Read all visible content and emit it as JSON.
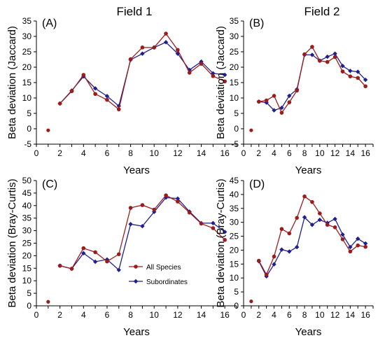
{
  "colors": {
    "all_species": "#9b1c1c",
    "subordinates": "#1f1f8f",
    "axis": "#000000"
  },
  "column_titles": [
    "Field 1",
    "Field 2"
  ],
  "x_axis_title": "Years",
  "legend": {
    "all_species": "All Species",
    "subordinates": "Subordinates"
  },
  "chart_data": [
    {
      "type": "line",
      "panel": "(A)",
      "field": "Field 1",
      "ylabel": "Beta deviation (Jaccard)",
      "xlim": [
        0,
        17
      ],
      "ylim": [
        -5,
        35
      ],
      "xticks": [
        0,
        2,
        4,
        6,
        8,
        10,
        12,
        14,
        16
      ],
      "yticks": [
        -5,
        0,
        5,
        10,
        15,
        20,
        25,
        30,
        35
      ],
      "year1": {
        "x": 1,
        "y": -0.5
      },
      "series": [
        {
          "name": "All Species",
          "x": [
            2,
            3,
            4,
            5,
            6,
            7,
            8,
            9,
            10,
            11,
            12,
            13,
            14,
            15,
            16
          ],
          "y": [
            8.2,
            12.2,
            17.5,
            11.3,
            9.4,
            6.3,
            22.6,
            26.4,
            26.4,
            30.9,
            25.6,
            18.2,
            21.1,
            17.1,
            15.4
          ]
        },
        {
          "name": "Subordinates",
          "x": [
            2,
            3,
            4,
            5,
            6,
            7,
            8,
            9,
            10,
            11,
            12,
            13,
            14,
            15,
            16
          ],
          "y": [
            8.2,
            12.4,
            17.0,
            13.1,
            10.6,
            7.4,
            22.4,
            24.4,
            26.4,
            28.1,
            24.4,
            19.1,
            21.8,
            18.0,
            17.5
          ]
        }
      ]
    },
    {
      "type": "line",
      "panel": "(B)",
      "field": "Field 2",
      "ylabel": "Beta deviation (Jaccard)",
      "xlim": [
        0,
        17
      ],
      "ylim": [
        -5,
        35
      ],
      "xticks": [
        0,
        2,
        4,
        6,
        8,
        10,
        12,
        14,
        16
      ],
      "yticks": [
        -5,
        0,
        5,
        10,
        15,
        20,
        25,
        30,
        35
      ],
      "year1": {
        "x": 1,
        "y": -0.5
      },
      "series": [
        {
          "name": "All Species",
          "x": [
            2,
            3,
            4,
            5,
            6,
            7,
            8,
            9,
            10,
            11,
            12,
            13,
            14,
            15,
            16
          ],
          "y": [
            8.8,
            9.2,
            10.7,
            5.2,
            8.6,
            12.4,
            24.2,
            26.6,
            22.1,
            21.7,
            23.3,
            18.6,
            17.0,
            16.5,
            13.8
          ]
        },
        {
          "name": "Subordinates",
          "x": [
            2,
            3,
            4,
            5,
            6,
            7,
            8,
            9,
            10,
            11,
            12,
            13,
            14,
            15,
            16
          ],
          "y": [
            8.8,
            8.5,
            6.0,
            6.8,
            10.7,
            12.8,
            24.0,
            24.0,
            22.1,
            23.4,
            24.4,
            20.4,
            18.8,
            18.5,
            15.9
          ]
        }
      ]
    },
    {
      "type": "line",
      "panel": "(C)",
      "field": "Field 1",
      "ylabel": "Beta deviation (Bray-Curtis)",
      "xlim": [
        0,
        17
      ],
      "ylim": [
        0,
        50
      ],
      "xticks": [
        0,
        2,
        4,
        6,
        8,
        10,
        12,
        14,
        16
      ],
      "yticks": [
        0,
        5,
        10,
        15,
        20,
        25,
        30,
        35,
        40,
        45,
        50
      ],
      "year1": {
        "x": 1,
        "y": 1.6
      },
      "series": [
        {
          "name": "All Species",
          "x": [
            2,
            3,
            4,
            5,
            6,
            7,
            8,
            9,
            10,
            11,
            12,
            13,
            14,
            15,
            16
          ],
          "y": [
            16.0,
            14.8,
            23.0,
            21.4,
            17.7,
            20.6,
            39.1,
            40.2,
            38.4,
            44.1,
            41.6,
            37.2,
            32.8,
            31.0,
            26.3
          ]
        },
        {
          "name": "Subordinates",
          "x": [
            2,
            3,
            4,
            5,
            6,
            7,
            8,
            9,
            10,
            11,
            12,
            13,
            14,
            15,
            16
          ],
          "y": [
            16.0,
            14.8,
            21.0,
            17.6,
            18.5,
            14.3,
            32.6,
            31.8,
            37.5,
            43.2,
            42.8,
            37.6,
            33.0,
            33.0,
            29.5
          ]
        }
      ]
    },
    {
      "type": "line",
      "panel": "(D)",
      "field": "Field 2",
      "ylabel": "Beta deviation (Bray-Curtis)",
      "xlim": [
        0,
        17
      ],
      "ylim": [
        0,
        45
      ],
      "xticks": [
        0,
        2,
        4,
        6,
        8,
        10,
        12,
        14,
        16
      ],
      "yticks": [
        0,
        5,
        10,
        15,
        20,
        25,
        30,
        35,
        40,
        45
      ],
      "year1": {
        "x": 1,
        "y": 1.6
      },
      "series": [
        {
          "name": "All Species",
          "x": [
            2,
            3,
            4,
            5,
            6,
            7,
            8,
            9,
            10,
            11,
            12,
            13,
            14,
            15,
            16
          ],
          "y": [
            16.2,
            11.2,
            17.7,
            27.6,
            26.0,
            31.6,
            39.3,
            37.3,
            33.2,
            29.1,
            28.2,
            23.9,
            19.5,
            21.7,
            21.2
          ]
        },
        {
          "name": "Subordinates",
          "x": [
            2,
            3,
            4,
            5,
            6,
            7,
            8,
            9,
            10,
            11,
            12,
            13,
            14,
            15,
            16
          ],
          "y": [
            16.0,
            10.6,
            14.9,
            20.2,
            19.5,
            21.1,
            31.8,
            29.1,
            30.9,
            29.8,
            31.2,
            25.6,
            21.1,
            24.1,
            22.4
          ]
        }
      ]
    }
  ]
}
